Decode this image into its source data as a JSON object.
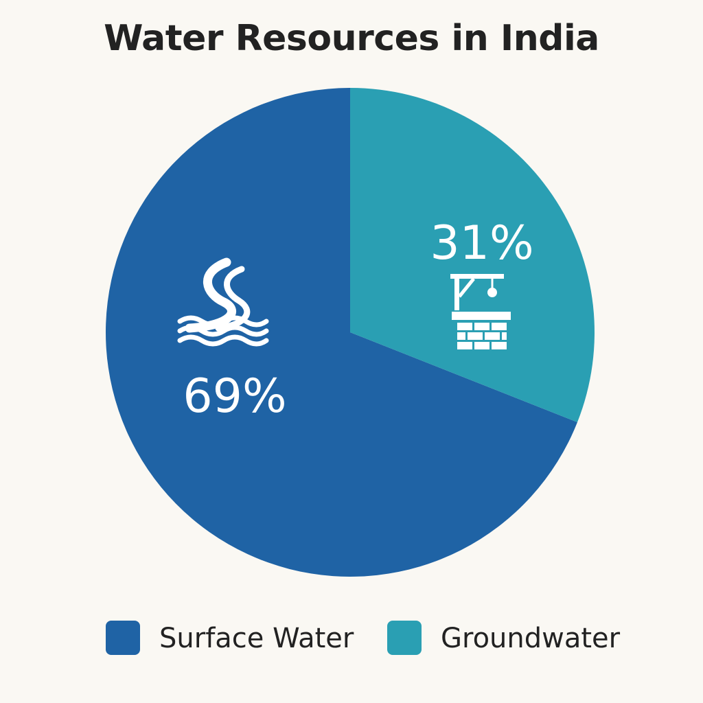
{
  "chart_data": {
    "type": "pie",
    "title": "Water Resources in India",
    "categories": [
      "Surface Water",
      "Groundwater"
    ],
    "values": [
      69,
      31
    ],
    "value_labels": [
      "69%",
      "31%"
    ],
    "colors": [
      "#1f63a5",
      "#2a9fb3"
    ],
    "icons": [
      "river-waves-icon",
      "water-well-icon"
    ],
    "legend_position": "bottom",
    "legend": [
      {
        "label": "Surface Water",
        "color": "#1f63a5"
      },
      {
        "label": "Groundwater",
        "color": "#2a9fb3"
      }
    ]
  }
}
